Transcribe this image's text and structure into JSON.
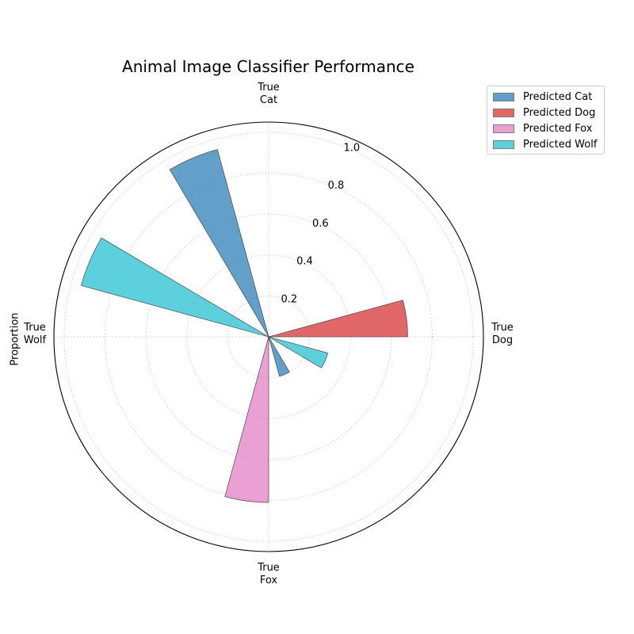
{
  "chart_data": {
    "type": "polar-bar",
    "title": "Animal Image Classifier Performance",
    "ylabel": "Proportion",
    "rlim": [
      0,
      1.05
    ],
    "r_ticks": [
      "0.2",
      "0.4",
      "0.6",
      "0.8",
      "1.0"
    ],
    "r_tick_values": [
      0.2,
      0.4,
      0.6,
      0.8,
      1.0
    ],
    "categories": [
      {
        "line1": "True",
        "line2": "Cat"
      },
      {
        "line1": "True",
        "line2": "Dog"
      },
      {
        "line1": "True",
        "line2": "Fox"
      },
      {
        "line1": "True",
        "line2": "Wolf"
      }
    ],
    "series": [
      {
        "name": "Predicted Cat",
        "color": "#1f77b4",
        "values": [
          0.95,
          0,
          0.2,
          0
        ]
      },
      {
        "name": "Predicted Dog",
        "color": "#d62728",
        "values": [
          0,
          0.68,
          0,
          0
        ]
      },
      {
        "name": "Predicted Fox",
        "color": "#e377c2",
        "values": [
          0,
          0,
          0.81,
          0
        ]
      },
      {
        "name": "Predicted Wolf",
        "color": "#17becf",
        "values": [
          0,
          0.3,
          0,
          0.95
        ]
      }
    ],
    "grid": true,
    "legend_position": "outside-top-right"
  }
}
